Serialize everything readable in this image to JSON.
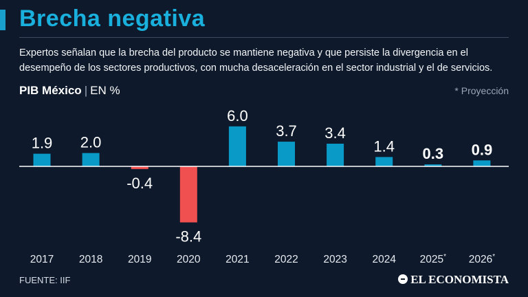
{
  "header": {
    "title": "Brecha negativa",
    "subtitle": "Expertos señalan que la brecha del producto se mantiene negativa y que persiste la divergencia en el desempeño de los sectores productivos, con mucha desaceleración en el sector industrial y el de servicios.",
    "series_label": "PIB México",
    "separator": "|",
    "unit_label": "EN %",
    "projection_note": "* Proyección"
  },
  "footer": {
    "source": "FUENTE: IIF",
    "brand": "EL ECONOMISTA"
  },
  "colors": {
    "positive": "#0a9ac7",
    "negative": "#f05050",
    "background": "#0e1a2b",
    "title": "#1ab0dd"
  },
  "chart_data": {
    "type": "bar",
    "title": "PIB México",
    "ylabel": "EN %",
    "categories": [
      "2017",
      "2018",
      "2019",
      "2020",
      "2021",
      "2022",
      "2023",
      "2024",
      "2025*",
      "2026*"
    ],
    "values": [
      1.9,
      2.0,
      -0.4,
      -8.4,
      6.0,
      3.7,
      3.4,
      1.4,
      0.3,
      0.9
    ],
    "value_labels": [
      "1.9",
      "2.0",
      "-0.4",
      "-8.4",
      "6.0",
      "3.7",
      "3.4",
      "1.4",
      "0.3",
      "0.9"
    ],
    "projected": [
      false,
      false,
      false,
      false,
      false,
      false,
      false,
      false,
      true,
      true
    ],
    "ylim": [
      -8.4,
      6.0
    ],
    "grid": false,
    "legend": "none"
  }
}
